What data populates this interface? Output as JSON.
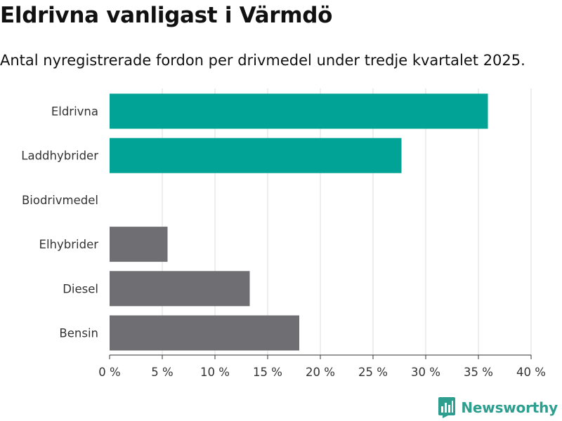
{
  "title": "Eldrivna vanligast i Värmdö",
  "subtitle": "Antal nyregistrerade fordon per drivmedel under tredje kvartalet 2025.",
  "brand": {
    "name": "Newsworthy",
    "icon": "bar-chart-logo-icon",
    "color": "#2e9e8f"
  },
  "chart_data": {
    "type": "bar",
    "orientation": "horizontal",
    "title": "Eldrivna vanligast i Värmdö",
    "subtitle": "Antal nyregistrerade fordon per drivmedel under tredje kvartalet 2025.",
    "xlabel": "",
    "ylabel": "",
    "categories": [
      "Eldrivna",
      "Laddhybrider",
      "Biodrivmedel",
      "Elhybrider",
      "Diesel",
      "Bensin"
    ],
    "values": [
      35.9,
      27.7,
      0,
      5.5,
      13.3,
      18.0
    ],
    "colors": [
      "#00a396",
      "#00a396",
      "#00a396",
      "#6e6e73",
      "#6e6e73",
      "#6e6e73"
    ],
    "xlim": [
      0,
      40
    ],
    "xticks": [
      0,
      5,
      10,
      15,
      20,
      25,
      30,
      35,
      40
    ],
    "xtick_labels": [
      "0 %",
      "5 %",
      "10 %",
      "15 %",
      "20 %",
      "25 %",
      "30 %",
      "35 %",
      "40 %"
    ],
    "grid": true,
    "legend": "none"
  }
}
